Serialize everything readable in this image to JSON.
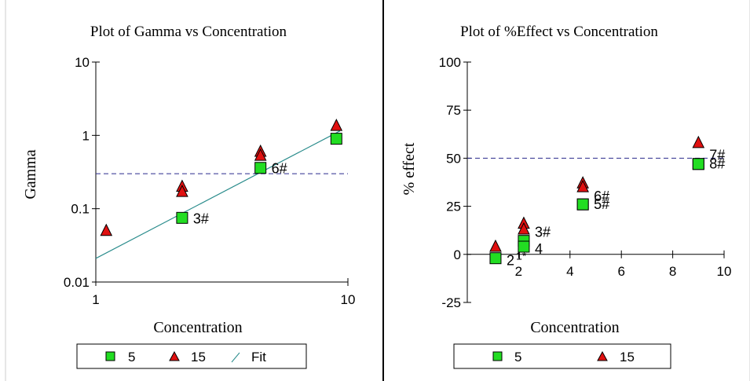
{
  "chart_data": [
    {
      "type": "scatter",
      "title": "Plot of Gamma vs Concentration",
      "xlabel": "Concentration",
      "ylabel": "Gamma",
      "xscale": "log",
      "yscale": "log",
      "xlim": [
        1,
        10
      ],
      "ylim": [
        0.01,
        10
      ],
      "x_ticks": [
        "1",
        "10"
      ],
      "y_ticks": [
        "10",
        "1",
        "0.1",
        "0.01"
      ],
      "grid": false,
      "legend_position": "bottom",
      "reference_line": {
        "axis": "y",
        "value": 0.3,
        "style": "dashed",
        "color": "#2a2a8c"
      },
      "series": [
        {
          "name": "5",
          "marker": "square",
          "color": "#22dd22",
          "points": [
            {
              "x": 2.2,
              "y": 0.075,
              "label": "3#"
            },
            {
              "x": 4.5,
              "y": 0.36,
              "label": "6#"
            },
            {
              "x": 9.0,
              "y": 0.9,
              "label": ""
            }
          ]
        },
        {
          "name": "15",
          "marker": "triangle",
          "color": "#e01010",
          "points": [
            {
              "x": 1.1,
              "y": 0.05
            },
            {
              "x": 2.2,
              "y": 0.2
            },
            {
              "x": 2.2,
              "y": 0.17
            },
            {
              "x": 4.5,
              "y": 0.6
            },
            {
              "x": 4.5,
              "y": 0.53
            },
            {
              "x": 9.0,
              "y": 1.35
            }
          ]
        },
        {
          "name": "Fit",
          "type": "line",
          "color": "#2a8c8c",
          "x": [
            1,
            9.3
          ],
          "y": [
            0.021,
            1.15
          ]
        }
      ]
    },
    {
      "type": "scatter",
      "title": "Plot of %Effect vs Concentration",
      "xlabel": "Concentration",
      "ylabel": "% effect",
      "xlim": [
        0,
        10
      ],
      "ylim": [
        -25,
        100
      ],
      "x_ticks": [
        "2",
        "4",
        "6",
        "8",
        "10"
      ],
      "y_ticks": [
        "100",
        "75",
        "50",
        "25",
        "0",
        "-25"
      ],
      "grid": false,
      "legend_position": "bottom",
      "reference_line": {
        "axis": "y",
        "value": 50,
        "style": "dashed",
        "color": "#2a2a8c"
      },
      "series": [
        {
          "name": "5",
          "marker": "square",
          "color": "#22dd22",
          "points": [
            {
              "x": 1.1,
              "y": -2,
              "label": "2"
            },
            {
              "x": 2.2,
              "y": 7,
              "label": "3#"
            },
            {
              "x": 2.2,
              "y": 4,
              "label": "4"
            },
            {
              "x": 4.5,
              "y": 26,
              "label": "6#"
            },
            {
              "x": 4.5,
              "y": 26,
              "label": "5#"
            },
            {
              "x": 9.0,
              "y": 47,
              "label": "7#"
            },
            {
              "x": 9.0,
              "y": 47,
              "label": "8#"
            }
          ]
        },
        {
          "name": "15",
          "marker": "triangle",
          "color": "#e01010",
          "points": [
            {
              "x": 1.1,
              "y": 4
            },
            {
              "x": 2.2,
              "y": 16
            },
            {
              "x": 2.2,
              "y": 13
            },
            {
              "x": 4.5,
              "y": 37
            },
            {
              "x": 4.5,
              "y": 35
            },
            {
              "x": 9.0,
              "y": 58
            }
          ]
        }
      ],
      "annotations": [
        {
          "x": 1.9,
          "y": -2,
          "text": "1*"
        }
      ]
    }
  ]
}
